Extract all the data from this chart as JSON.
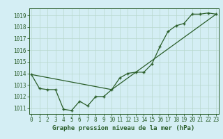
{
  "title": "Graphe pression niveau de la mer (hPa)",
  "background_color": "#d4eef4",
  "grid_color": "#b8d8cc",
  "line_color": "#2a5e2a",
  "marker_color": "#2a5e2a",
  "xlim": [
    -0.3,
    23.3
  ],
  "ylim": [
    1010.5,
    1019.6
  ],
  "yticks": [
    1011,
    1012,
    1013,
    1014,
    1015,
    1016,
    1017,
    1018,
    1019
  ],
  "xticks": [
    0,
    1,
    2,
    3,
    4,
    5,
    6,
    7,
    8,
    9,
    10,
    11,
    12,
    13,
    14,
    15,
    16,
    17,
    18,
    19,
    20,
    21,
    22,
    23
  ],
  "hours": [
    0,
    1,
    2,
    3,
    4,
    5,
    6,
    7,
    8,
    9,
    10,
    11,
    12,
    13,
    14,
    15,
    16,
    17,
    18,
    19,
    20,
    21,
    22,
    23
  ],
  "pressure_line1": [
    1013.9,
    1012.7,
    1012.6,
    1012.6,
    1010.9,
    1010.8,
    1011.6,
    1011.2,
    1012.0,
    1012.0,
    1012.6,
    1013.6,
    1014.0,
    1014.1,
    1014.1,
    1014.8,
    1016.3,
    1017.6,
    1018.1,
    1018.3,
    1019.1,
    1019.1,
    1019.2,
    1019.1
  ],
  "pressure_line2_x": [
    0,
    10,
    23
  ],
  "pressure_line2_y": [
    1013.9,
    1012.6,
    1019.1
  ],
  "tick_fontsize": 5.5,
  "title_fontsize": 6.5
}
